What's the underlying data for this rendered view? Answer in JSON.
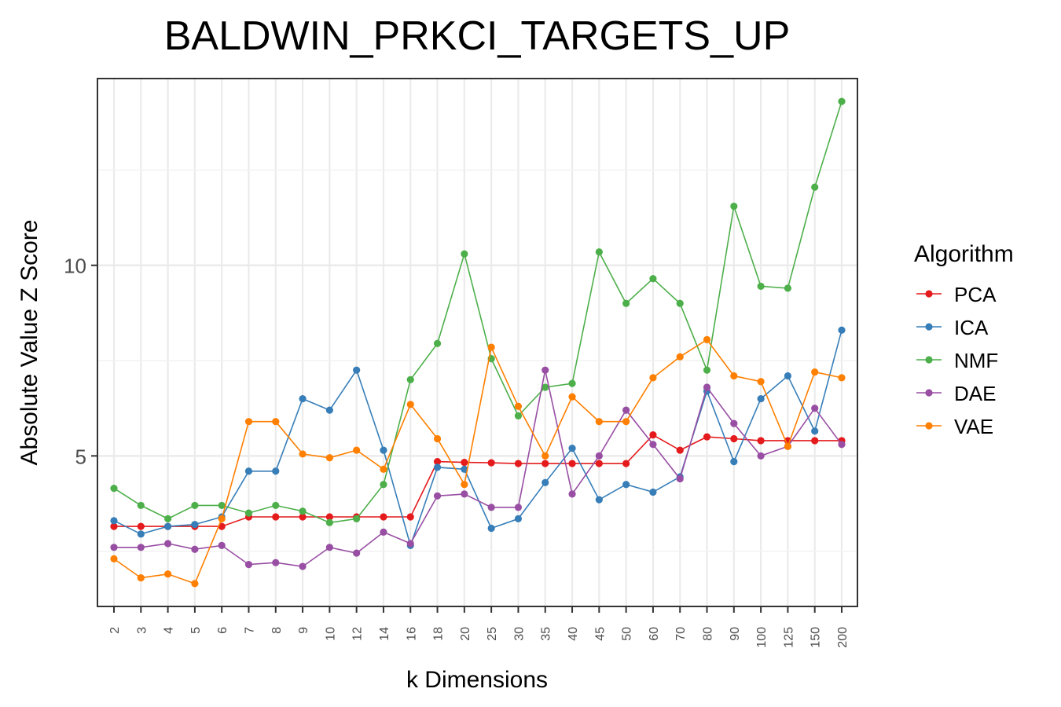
{
  "chart_data": {
    "type": "line",
    "title": "BALDWIN_PRKCI_TARGETS_UP",
    "xlabel": "k Dimensions",
    "ylabel": "Absolute Value Z Score",
    "categories": [
      "2",
      "3",
      "4",
      "5",
      "6",
      "7",
      "8",
      "9",
      "10",
      "12",
      "14",
      "16",
      "18",
      "20",
      "25",
      "30",
      "35",
      "40",
      "45",
      "50",
      "60",
      "70",
      "80",
      "90",
      "100",
      "125",
      "150",
      "200"
    ],
    "ylim": [
      1.05,
      14.9
    ],
    "yticks": [
      5,
      10
    ],
    "grid": true,
    "legend": {
      "title": "Algorithm",
      "position": "right"
    },
    "series": [
      {
        "name": "PCA",
        "color": "#e41a1c",
        "values": [
          3.15,
          3.15,
          3.15,
          3.15,
          3.15,
          3.4,
          3.4,
          3.4,
          3.4,
          3.4,
          3.4,
          3.4,
          4.85,
          4.83,
          4.82,
          4.8,
          4.8,
          4.8,
          4.8,
          4.8,
          5.55,
          5.15,
          5.5,
          5.45,
          5.4,
          5.4,
          5.4,
          5.4
        ]
      },
      {
        "name": "ICA",
        "color": "#377eb8",
        "values": [
          3.3,
          2.95,
          3.15,
          3.2,
          3.4,
          4.6,
          4.6,
          6.5,
          6.2,
          7.25,
          5.15,
          2.65,
          4.7,
          4.65,
          3.1,
          3.35,
          4.3,
          5.2,
          3.85,
          4.25,
          4.05,
          4.45,
          6.7,
          4.85,
          6.5,
          7.1,
          5.65,
          8.3
        ]
      },
      {
        "name": "NMF",
        "color": "#4daf4a",
        "values": [
          4.15,
          3.7,
          3.35,
          3.7,
          3.7,
          3.5,
          3.7,
          3.55,
          3.25,
          3.35,
          4.25,
          7.0,
          7.95,
          10.3,
          7.55,
          6.05,
          6.8,
          6.9,
          10.35,
          9.0,
          9.65,
          9.0,
          7.25,
          11.55,
          9.45,
          9.4,
          12.05,
          14.3
        ]
      },
      {
        "name": "DAE",
        "color": "#984ea3",
        "values": [
          2.6,
          2.6,
          2.7,
          2.55,
          2.65,
          2.15,
          2.2,
          2.1,
          2.6,
          2.45,
          3.0,
          2.7,
          3.95,
          4.0,
          3.65,
          3.65,
          7.25,
          4.0,
          5.0,
          6.2,
          5.3,
          4.4,
          6.8,
          5.85,
          5.0,
          5.25,
          6.25,
          5.3
        ]
      },
      {
        "name": "VAE",
        "color": "#ff7f00",
        "values": [
          2.3,
          1.8,
          1.9,
          1.65,
          3.35,
          5.9,
          5.9,
          5.05,
          4.95,
          5.15,
          4.65,
          6.35,
          5.45,
          4.25,
          7.85,
          6.3,
          5.0,
          6.55,
          5.9,
          5.9,
          7.05,
          7.6,
          8.05,
          7.1,
          6.95,
          5.25,
          7.2,
          7.05
        ]
      }
    ]
  }
}
